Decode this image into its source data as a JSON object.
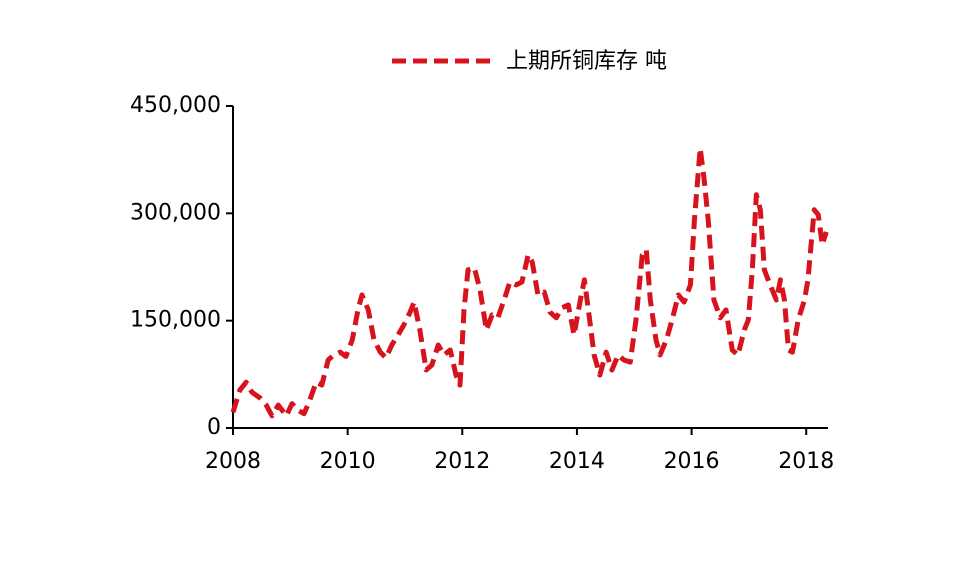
{
  "chart_data": {
    "type": "line",
    "series": [
      {
        "name": "上期所铜库存 吨",
        "color": "#d7141e",
        "x": [
          2008.0,
          2008.12,
          2008.23,
          2008.33,
          2008.47,
          2008.58,
          2008.68,
          2008.79,
          2008.93,
          2009.03,
          2009.13,
          2009.24,
          2009.34,
          2009.45,
          2009.55,
          2009.66,
          2009.76,
          2009.87,
          2009.97,
          2010.08,
          2010.18,
          2010.25,
          2010.36,
          2010.46,
          2010.57,
          2010.67,
          2010.77,
          2010.88,
          2010.98,
          2011.09,
          2011.16,
          2011.26,
          2011.37,
          2011.47,
          2011.58,
          2011.68,
          2011.79,
          2011.89,
          2011.96,
          2012.03,
          2012.1,
          2012.21,
          2012.31,
          2012.42,
          2012.52,
          2012.62,
          2012.73,
          2012.83,
          2012.94,
          2013.04,
          2013.15,
          2013.22,
          2013.32,
          2013.43,
          2013.53,
          2013.64,
          2013.74,
          2013.85,
          2013.95,
          2014.06,
          2014.13,
          2014.2,
          2014.3,
          2014.4,
          2014.51,
          2014.61,
          2014.72,
          2014.82,
          2014.93,
          2015.03,
          2015.14,
          2015.21,
          2015.28,
          2015.38,
          2015.45,
          2015.56,
          2015.66,
          2015.77,
          2015.87,
          2015.98,
          2016.05,
          2016.15,
          2016.22,
          2016.29,
          2016.39,
          2016.5,
          2016.6,
          2016.71,
          2016.81,
          2016.92,
          2016.99,
          2017.06,
          2017.13,
          2017.2,
          2017.27,
          2017.37,
          2017.48,
          2017.55,
          2017.62,
          2017.69,
          2017.76,
          2017.86,
          2017.97,
          2018.03,
          2018.14,
          2018.21,
          2018.28,
          2018.35
        ],
        "values": [
          22000,
          53000,
          64000,
          50000,
          42000,
          32000,
          17000,
          32000,
          17000,
          34000,
          25000,
          20000,
          39000,
          64000,
          60000,
          95000,
          102000,
          106000,
          100000,
          123000,
          165000,
          186000,
          165000,
          123000,
          106000,
          98000,
          116000,
          130000,
          144000,
          162000,
          176000,
          137000,
          81000,
          88000,
          116000,
          102000,
          109000,
          74000,
          60000,
          165000,
          221000,
          224000,
          193000,
          137000,
          158000,
          154000,
          179000,
          204000,
          200000,
          204000,
          242000,
          232000,
          186000,
          190000,
          162000,
          154000,
          168000,
          172000,
          130000,
          179000,
          207000,
          165000,
          102000,
          74000,
          106000,
          81000,
          102000,
          95000,
          92000,
          151000,
          242000,
          249000,
          179000,
          123000,
          102000,
          123000,
          151000,
          186000,
          176000,
          200000,
          291000,
          391000,
          347000,
          291000,
          179000,
          154000,
          165000,
          109000,
          102000,
          137000,
          151000,
          221000,
          326000,
          305000,
          221000,
          200000,
          179000,
          207000,
          179000,
          109000,
          106000,
          151000,
          179000,
          207000,
          305000,
          298000,
          256000,
          274000
        ]
      }
    ],
    "xlim": [
      2008,
      2018.38
    ],
    "xticks": [
      2008,
      2010,
      2012,
      2014,
      2016,
      2018
    ],
    "ylim": [
      0,
      450000
    ],
    "yticks": [
      0,
      {
        "value": 150000,
        "label": "150,000"
      },
      {
        "value": 300000,
        "label": "300,000"
      },
      {
        "value": 450000,
        "label": "450,000"
      }
    ],
    "grid": false,
    "legend": "top"
  }
}
